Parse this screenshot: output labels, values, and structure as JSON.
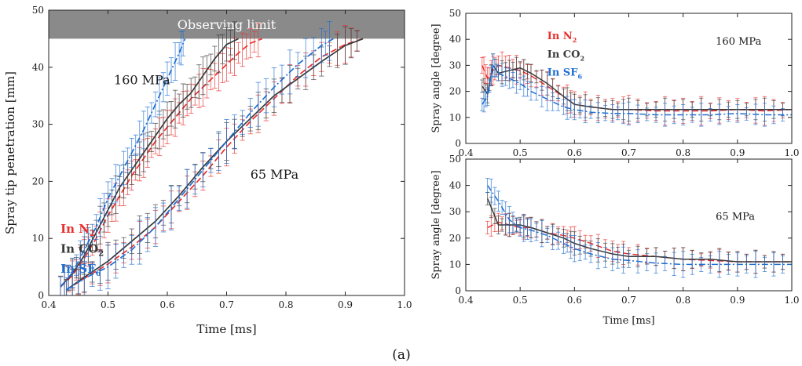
{
  "figure": {
    "caption": "(a)"
  },
  "colors": {
    "n2": "#e8312f",
    "co2": "#3a3a3a",
    "sf6": "#1f6fd1",
    "band": "#8a8a8a"
  },
  "chart_data": [
    {
      "id": "penetration",
      "type": "line",
      "title": "",
      "xlabel": "Time [ms]",
      "ylabel": "Spray tip penetration [mm]",
      "xlim": [
        0.4,
        1.0
      ],
      "ylim": [
        0,
        50
      ],
      "xticks": [
        "0.4",
        "0.5",
        "0.6",
        "0.7",
        "0.8",
        "0.9",
        "1.0"
      ],
      "yticks": [
        "0",
        "10",
        "20",
        "30",
        "40",
        "50"
      ],
      "band": {
        "label": "Observing limit",
        "from": 45,
        "to": 50
      },
      "annotations": [
        {
          "text": "160 MPa",
          "x": 0.51,
          "y": 37
        },
        {
          "text": "65 MPa",
          "x": 0.74,
          "y": 20.5
        }
      ],
      "legend": [
        {
          "pre": "In N",
          "sub": "2",
          "color": "#e8312f",
          "x": 0.42,
          "y": 11
        },
        {
          "pre": "In CO",
          "sub": "2",
          "color": "#3a3a3a",
          "x": 0.42,
          "y": 7.5
        },
        {
          "pre": "In SF",
          "sub": "6",
          "color": "#1f6fd1",
          "x": 0.42,
          "y": 4
        }
      ],
      "series": [
        {
          "name": "In N2 160 MPa",
          "color": "#e8312f",
          "dash": "8,4",
          "x": [
            0.42,
            0.44,
            0.46,
            0.48,
            0.5,
            0.52,
            0.54,
            0.56,
            0.58,
            0.6,
            0.62,
            0.64,
            0.66,
            0.68,
            0.7,
            0.72,
            0.74,
            0.76
          ],
          "y": [
            1.5,
            3.5,
            6.5,
            10,
            14,
            17.5,
            21,
            24,
            27,
            29.5,
            32,
            34.5,
            36.5,
            38.5,
            40.5,
            42.5,
            44.2,
            45
          ],
          "err": 3
        },
        {
          "name": "In CO2 160 MPa",
          "color": "#3a3a3a",
          "dash": "",
          "x": [
            0.42,
            0.44,
            0.46,
            0.48,
            0.5,
            0.52,
            0.54,
            0.56,
            0.58,
            0.6,
            0.62,
            0.64,
            0.66,
            0.68,
            0.7,
            0.72
          ],
          "y": [
            1.6,
            3.8,
            7,
            11,
            15,
            19,
            22,
            25,
            28,
            31,
            33.5,
            35.5,
            38.5,
            41.5,
            44,
            45
          ],
          "err": 3
        },
        {
          "name": "In SF6 160 MPa",
          "color": "#1f6fd1",
          "dash": "8,3,2,3",
          "x": [
            0.42,
            0.44,
            0.46,
            0.48,
            0.5,
            0.52,
            0.54,
            0.56,
            0.58,
            0.6,
            0.62,
            0.63
          ],
          "y": [
            1.5,
            4,
            8,
            12,
            17,
            21,
            25,
            29,
            33.5,
            38,
            42.5,
            45
          ],
          "err": 3
        },
        {
          "name": "In N2 65 MPa",
          "color": "#e8312f",
          "dash": "8,4",
          "x": [
            0.43,
            0.46,
            0.5,
            0.54,
            0.58,
            0.62,
            0.66,
            0.7,
            0.74,
            0.78,
            0.82,
            0.86,
            0.9,
            0.93
          ],
          "y": [
            1,
            3,
            5.5,
            8.5,
            12,
            16.5,
            21,
            26,
            30.5,
            34.5,
            38.5,
            41.8,
            44,
            45
          ],
          "err": 3
        },
        {
          "name": "In CO2 65 MPa",
          "color": "#3a3a3a",
          "dash": "",
          "x": [
            0.43,
            0.46,
            0.5,
            0.54,
            0.58,
            0.62,
            0.66,
            0.7,
            0.74,
            0.78,
            0.82,
            0.86,
            0.9,
            0.93
          ],
          "y": [
            1,
            3.2,
            6,
            9.5,
            13,
            17.5,
            22.5,
            27,
            31,
            35,
            38,
            41,
            43.8,
            45
          ],
          "err": 3
        },
        {
          "name": "In SF6 65 MPa",
          "color": "#1f6fd1",
          "dash": "8,3,2,3",
          "x": [
            0.43,
            0.46,
            0.5,
            0.54,
            0.58,
            0.62,
            0.66,
            0.7,
            0.74,
            0.78,
            0.82,
            0.86,
            0.88
          ],
          "y": [
            1,
            3,
            5,
            8,
            12,
            17,
            22,
            27,
            32,
            36.5,
            40.5,
            43.8,
            45
          ],
          "err": 3.5
        }
      ]
    },
    {
      "id": "angle160",
      "type": "line",
      "xlabel": "",
      "ylabel": "Spray angle [degree]",
      "xlim": [
        0.4,
        1.0
      ],
      "ylim": [
        0,
        50
      ],
      "xticks": [
        "0.4",
        "0.5",
        "0.6",
        "0.7",
        "0.8",
        "0.9",
        "1.0"
      ],
      "yticks": [
        "0",
        "10",
        "20",
        "30",
        "40",
        "50"
      ],
      "annotations": [
        {
          "text": "160 MPa",
          "x": 0.86,
          "y": 38
        }
      ],
      "legend": [
        {
          "pre": "In N",
          "sub": "2",
          "color": "#e8312f",
          "x": 0.55,
          "y": 40
        },
        {
          "pre": "In CO",
          "sub": "2",
          "color": "#3a3a3a",
          "x": 0.55,
          "y": 33
        },
        {
          "pre": "In SF",
          "sub": "6",
          "color": "#1f6fd1",
          "x": 0.55,
          "y": 26
        }
      ],
      "series": [
        {
          "name": "In N2 160 MPa",
          "color": "#e8312f",
          "dash": "8,4",
          "x": [
            0.43,
            0.44,
            0.45,
            0.46,
            0.48,
            0.5,
            0.52,
            0.55,
            0.58,
            0.6,
            0.63,
            0.67,
            0.7,
            0.75,
            0.8,
            0.85,
            0.9,
            0.95,
            1.0
          ],
          "y": [
            30,
            25,
            28,
            30,
            29,
            28,
            26,
            22,
            18,
            15,
            14,
            13,
            13,
            12.5,
            12.5,
            12.5,
            13,
            12.5,
            13
          ],
          "err": 5
        },
        {
          "name": "In CO2 160 MPa",
          "color": "#3a3a3a",
          "dash": "",
          "x": [
            0.43,
            0.44,
            0.45,
            0.46,
            0.48,
            0.5,
            0.52,
            0.55,
            0.58,
            0.6,
            0.63,
            0.67,
            0.7,
            0.75,
            0.8,
            0.85,
            0.9,
            0.95,
            1.0
          ],
          "y": [
            22,
            19,
            30,
            27,
            28,
            29,
            27,
            23,
            18,
            15,
            14,
            13,
            13,
            13,
            13,
            13,
            13,
            13,
            13
          ],
          "err": 4
        },
        {
          "name": "In SF6 160 MPa",
          "color": "#1f6fd1",
          "dash": "8,3,2,3",
          "x": [
            0.43,
            0.44,
            0.45,
            0.46,
            0.48,
            0.5,
            0.52,
            0.55,
            0.58,
            0.6,
            0.63,
            0.67,
            0.7,
            0.75,
            0.8,
            0.85,
            0.9,
            0.95,
            1.0
          ],
          "y": [
            15,
            18,
            30,
            27,
            25,
            23,
            20,
            17,
            14,
            13,
            12,
            11.5,
            11.5,
            11,
            11,
            11,
            11.5,
            11,
            11
          ],
          "err": 4
        }
      ]
    },
    {
      "id": "angle65",
      "type": "line",
      "xlabel": "Time [ms]",
      "ylabel": "Spray angle [degree]",
      "xlim": [
        0.4,
        1.0
      ],
      "ylim": [
        0,
        50
      ],
      "xticks": [
        "0.4",
        "0.5",
        "0.6",
        "0.7",
        "0.8",
        "0.9",
        "1.0"
      ],
      "yticks": [
        "0",
        "10",
        "20",
        "30",
        "40",
        "50"
      ],
      "annotations": [
        {
          "text": "65 MPa",
          "x": 0.86,
          "y": 27
        }
      ],
      "legend": [],
      "series": [
        {
          "name": "In N2 65 MPa",
          "color": "#e8312f",
          "dash": "8,4",
          "x": [
            0.44,
            0.46,
            0.48,
            0.5,
            0.52,
            0.55,
            0.58,
            0.6,
            0.63,
            0.67,
            0.7,
            0.75,
            0.8,
            0.85,
            0.9,
            0.95,
            1.0
          ],
          "y": [
            24,
            26,
            25,
            24,
            24,
            22,
            21,
            20,
            18,
            15,
            14,
            13,
            12,
            11.5,
            11,
            11,
            11
          ],
          "err": 4
        },
        {
          "name": "In CO2 65 MPa",
          "color": "#3a3a3a",
          "dash": "",
          "x": [
            0.44,
            0.46,
            0.48,
            0.5,
            0.52,
            0.55,
            0.58,
            0.6,
            0.63,
            0.67,
            0.7,
            0.75,
            0.8,
            0.85,
            0.9,
            0.95,
            1.0
          ],
          "y": [
            35,
            25,
            25,
            25,
            24,
            22,
            20,
            18,
            16,
            14,
            13,
            13,
            12,
            12,
            11,
            11,
            11
          ],
          "err": 4
        },
        {
          "name": "In SF6 65 MPa",
          "color": "#1f6fd1",
          "dash": "8,3,2,3",
          "x": [
            0.44,
            0.46,
            0.48,
            0.5,
            0.52,
            0.55,
            0.58,
            0.6,
            0.63,
            0.67,
            0.7,
            0.75,
            0.8,
            0.85,
            0.9,
            0.95,
            1.0
          ],
          "y": [
            40,
            34,
            27,
            24,
            23,
            21,
            18,
            16,
            14,
            12,
            11.5,
            10.5,
            10,
            10,
            10,
            10,
            10
          ],
          "err": 4.5
        }
      ]
    }
  ]
}
